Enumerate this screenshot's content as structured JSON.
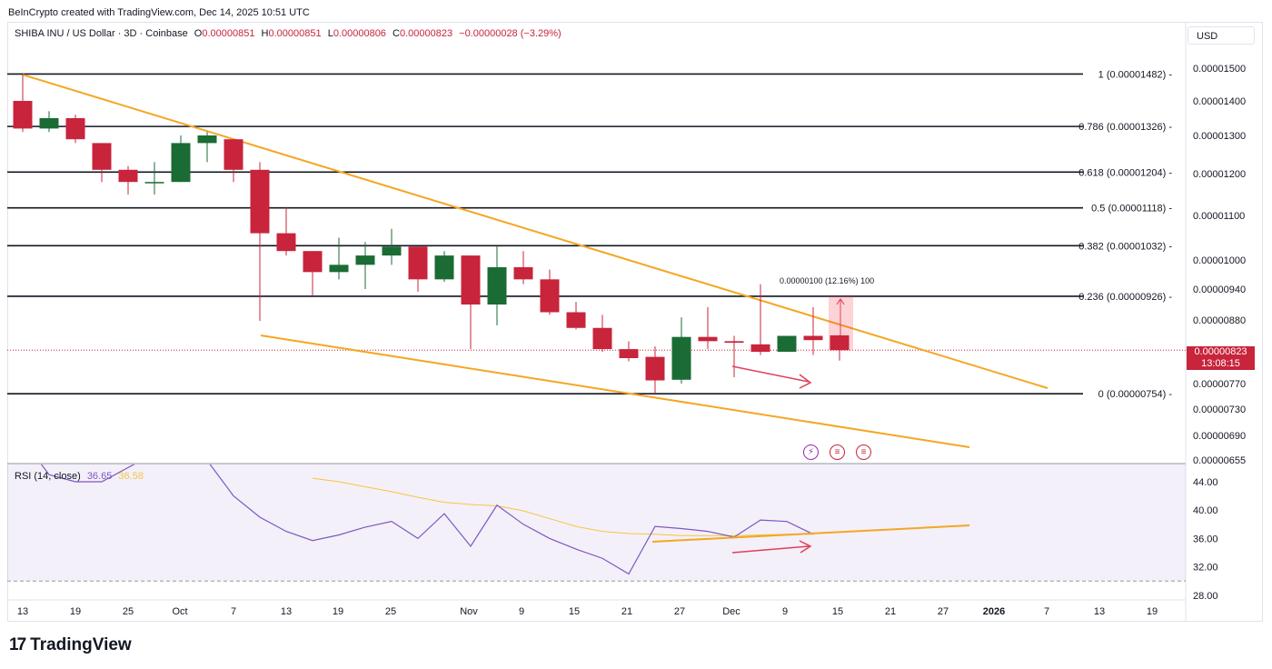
{
  "credit": "BeInCrypto created with TradingView.com, Dec 14, 2025 10:51 UTC",
  "legend": {
    "symbol": "SHIBA INU / US Dollar · 3D · Coinbase",
    "o_label": "O",
    "o_value": "0.00000851",
    "h_label": "H",
    "h_value": "0.00000851",
    "l_label": "L",
    "l_value": "0.00000806",
    "c_label": "C",
    "c_value": "0.00000823",
    "change": "−0.00000028 (−3.29%)"
  },
  "currency_button": "USD",
  "price_tag": {
    "price": "0.00000823",
    "countdown": "13:08:15"
  },
  "rsi_legend": {
    "label": "RSI (14, close)",
    "rsi_value": "36.65",
    "ma_value": "36.58"
  },
  "logo": {
    "mark": "17",
    "text": "TradingView"
  },
  "events": [
    {
      "icon": "lightning-icon",
      "glyph": "⚡"
    },
    {
      "icon": "us-flag-icon",
      "glyph": "≡"
    },
    {
      "icon": "us-flag-icon",
      "glyph": "≡"
    }
  ],
  "colors": {
    "up": "#1b6b35",
    "down": "#c8243b",
    "trend": "#f5a623",
    "rsi": "#7e57c2",
    "rsi_ma": "#f5c542",
    "arrow": "#e0405a"
  },
  "chart_data": {
    "type": "candlestick",
    "price_axis": {
      "range": [
        6.55e-06,
        1.55e-05
      ],
      "ticks": [
        "0.00001500",
        "0.00001400",
        "0.00001300",
        "0.00001200",
        "0.00001100",
        "0.00001000",
        "0.00000940",
        "0.00000880",
        "0.00000820",
        "0.00000770",
        "0.00000730",
        "0.00000690",
        "0.00000655"
      ]
    },
    "time_axis": {
      "ticks": [
        "13",
        "19",
        "25",
        "Oct",
        "7",
        "13",
        "19",
        "25",
        "Nov",
        "9",
        "15",
        "21",
        "27",
        "Dec",
        "9",
        "15",
        "21",
        "27",
        "2026",
        "7",
        "13",
        "19"
      ]
    },
    "fib_levels": [
      {
        "label": "1 (0.00001482)",
        "value": 1.482e-05
      },
      {
        "label": "0.786 (0.00001326)",
        "value": 1.326e-05
      },
      {
        "label": "0.618 (0.00001204)",
        "value": 1.204e-05
      },
      {
        "label": "0.5 (0.00001118)",
        "value": 1.118e-05
      },
      {
        "label": "0.382 (0.00001032)",
        "value": 1.032e-05
      },
      {
        "label": "0.236 (0.00000926)",
        "value": 9.26e-06
      },
      {
        "label": "0 (0.00000754)",
        "value": 7.54e-06
      }
    ],
    "candles": [
      {
        "o": 1.4e-05,
        "h": 1.48e-05,
        "l": 1.31e-05,
        "c": 1.32e-05
      },
      {
        "o": 1.32e-05,
        "h": 1.37e-05,
        "l": 1.31e-05,
        "c": 1.35e-05
      },
      {
        "o": 1.35e-05,
        "h": 1.36e-05,
        "l": 1.28e-05,
        "c": 1.29e-05
      },
      {
        "o": 1.28e-05,
        "h": 1.28e-05,
        "l": 1.18e-05,
        "c": 1.21e-05
      },
      {
        "o": 1.21e-05,
        "h": 1.22e-05,
        "l": 1.15e-05,
        "c": 1.18e-05
      },
      {
        "o": 1.18e-05,
        "h": 1.23e-05,
        "l": 1.15e-05,
        "c": 1.18e-05
      },
      {
        "o": 1.18e-05,
        "h": 1.3e-05,
        "l": 1.18e-05,
        "c": 1.28e-05
      },
      {
        "o": 1.28e-05,
        "h": 1.31e-05,
        "l": 1.23e-05,
        "c": 1.3e-05
      },
      {
        "o": 1.29e-05,
        "h": 1.29e-05,
        "l": 1.18e-05,
        "c": 1.21e-05
      },
      {
        "o": 1.21e-05,
        "h": 1.23e-05,
        "l": 8.78e-06,
        "c": 1.06e-05
      },
      {
        "o": 1.06e-05,
        "h": 1.12e-05,
        "l": 1.01e-05,
        "c": 1.02e-05
      },
      {
        "o": 1.02e-05,
        "h": 1.02e-05,
        "l": 9.26e-06,
        "c": 9.75e-06
      },
      {
        "o": 9.75e-06,
        "h": 1.05e-05,
        "l": 9.6e-06,
        "c": 9.9e-06
      },
      {
        "o": 9.9e-06,
        "h": 1.04e-05,
        "l": 9.4e-06,
        "c": 1.01e-05
      },
      {
        "o": 1.01e-05,
        "h": 1.07e-05,
        "l": 9.9e-06,
        "c": 1.03e-05
      },
      {
        "o": 1.03e-05,
        "h": 1.03e-05,
        "l": 9.35e-06,
        "c": 9.6e-06
      },
      {
        "o": 9.6e-06,
        "h": 1.02e-05,
        "l": 9.55e-06,
        "c": 1.01e-05
      },
      {
        "o": 1.01e-05,
        "h": 1.01e-05,
        "l": 8.25e-06,
        "c": 9.1e-06
      },
      {
        "o": 9.1e-06,
        "h": 1.03e-05,
        "l": 8.7e-06,
        "c": 9.85e-06
      },
      {
        "o": 9.85e-06,
        "h": 1.02e-05,
        "l": 9.5e-06,
        "c": 9.6e-06
      },
      {
        "o": 9.6e-06,
        "h": 9.8e-06,
        "l": 8.9e-06,
        "c": 8.95e-06
      },
      {
        "o": 8.95e-06,
        "h": 9.15e-06,
        "l": 8.62e-06,
        "c": 8.65e-06
      },
      {
        "o": 8.65e-06,
        "h": 8.9e-06,
        "l": 8.2e-06,
        "c": 8.25e-06
      },
      {
        "o": 8.25e-06,
        "h": 8.4e-06,
        "l": 8.05e-06,
        "c": 8.1e-06
      },
      {
        "o": 8.12e-06,
        "h": 8.3e-06,
        "l": 7.54e-06,
        "c": 7.75e-06
      },
      {
        "o": 7.76e-06,
        "h": 8.85e-06,
        "l": 7.7e-06,
        "c": 8.48e-06
      },
      {
        "o": 8.48e-06,
        "h": 9.05e-06,
        "l": 8.25e-06,
        "c": 8.4e-06
      },
      {
        "o": 8.4e-06,
        "h": 8.5e-06,
        "l": 7.8e-06,
        "c": 8.37e-06
      },
      {
        "o": 8.34e-06,
        "h": 9.5e-06,
        "l": 8.15e-06,
        "c": 8.2e-06
      },
      {
        "o": 8.2e-06,
        "h": 8.5e-06,
        "l": 8.2e-06,
        "c": 8.5e-06
      },
      {
        "o": 8.5e-06,
        "h": 9.05e-06,
        "l": 8.15e-06,
        "c": 8.42e-06
      },
      {
        "o": 8.51e-06,
        "h": 8.51e-06,
        "l": 8.06e-06,
        "c": 8.23e-06
      }
    ],
    "current_price": 8.23e-06,
    "measure_annotation": "0.00000100 (12.16%) 100",
    "rsi": {
      "axis_ticks": [
        "44.00",
        "40.00",
        "36.00",
        "32.00",
        "28.00"
      ],
      "range": [
        28,
        46
      ],
      "band": [
        30,
        46
      ],
      "values": [
        50,
        45,
        44,
        44,
        46,
        48,
        50,
        47,
        42,
        39,
        37,
        35.7,
        36.5,
        37.6,
        38.4,
        36,
        39.5,
        34.9,
        40.7,
        38,
        36,
        34.5,
        33.2,
        31,
        37.7,
        37.4,
        37,
        36.2,
        38.6,
        38.4,
        36.6
      ],
      "ma_values": [
        null,
        null,
        null,
        null,
        null,
        null,
        null,
        null,
        null,
        null,
        null,
        44.5,
        44,
        43.3,
        42.6,
        41.8,
        41.1,
        40.8,
        40.6,
        39.9,
        38.8,
        37.7,
        37,
        36.7,
        36.6,
        36.4,
        36.4,
        36.4,
        36.5,
        36.6,
        36.6
      ]
    }
  }
}
